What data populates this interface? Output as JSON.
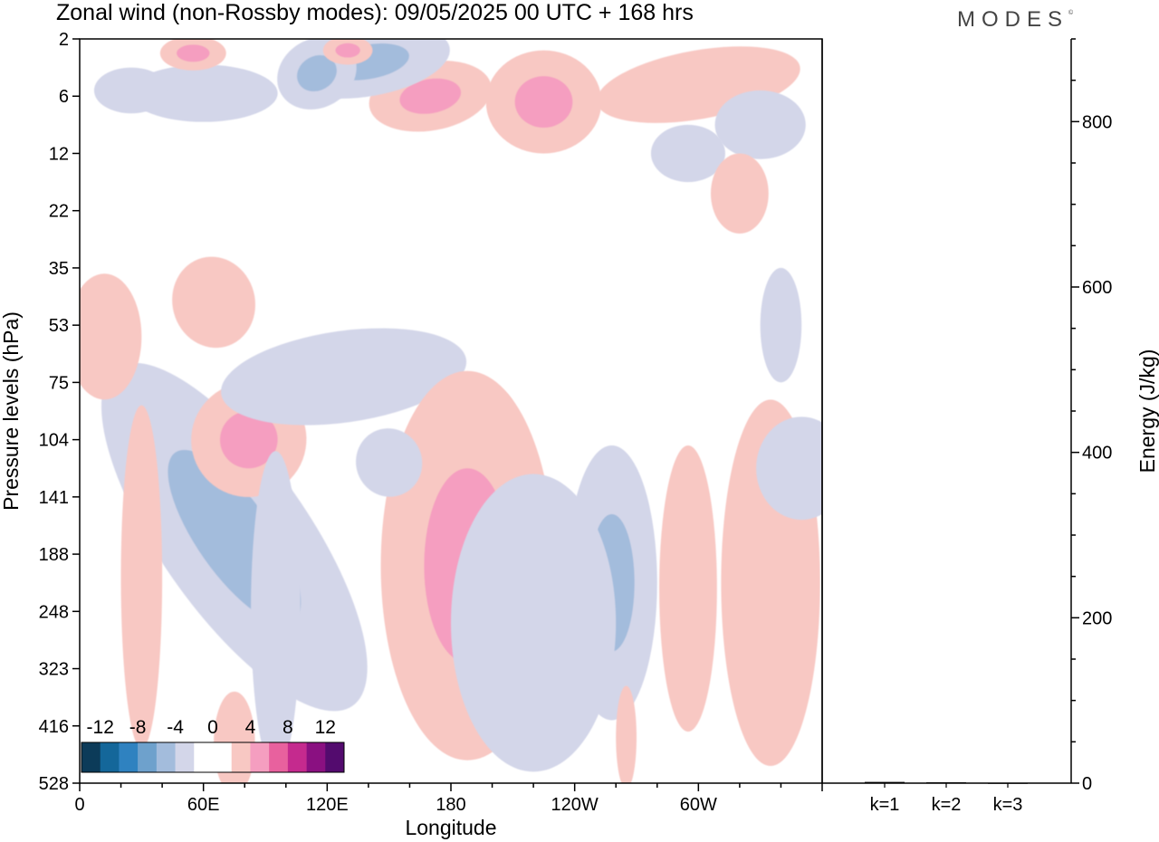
{
  "header": {
    "title": "Zonal wind (non-Rossby modes):  09/05/2025  00 UTC  + 168 hrs",
    "logo": "MODES",
    "logo_mark": "©"
  },
  "chart_data": [
    {
      "type": "heatmap",
      "title": "Zonal wind (non-Rossby modes):  09/05/2025  00 UTC  + 168 hrs",
      "xlabel": "Longitude",
      "ylabel": "Pressure levels (hPa)",
      "x_ticks": [
        {
          "label": "0",
          "deg": 0
        },
        {
          "label": "60E",
          "deg": 60
        },
        {
          "label": "120E",
          "deg": 120
        },
        {
          "label": "180",
          "deg": 180
        },
        {
          "label": "120W",
          "deg": 240
        },
        {
          "label": "60W",
          "deg": 300
        }
      ],
      "xlim": [
        0,
        360
      ],
      "y_levels": [
        "2",
        "6",
        "12",
        "22",
        "35",
        "53",
        "75",
        "104",
        "141",
        "188",
        "248",
        "323",
        "416",
        "528"
      ],
      "colorbar": {
        "labels": [
          "-12",
          "-8",
          "-4",
          "0",
          "4",
          "8",
          "12"
        ],
        "colors": [
          "#0c3b59",
          "#14679a",
          "#2f82c0",
          "#6ea1cc",
          "#a3bcdc",
          "#d3d6e9",
          "#ffffff",
          "#ffffff",
          "#f8c8c3",
          "#f59ec0",
          "#e8619e",
          "#c52a8e",
          "#8a1081",
          "#530b6e"
        ]
      },
      "features": [
        {
          "lon": 72,
          "lev": 8.5,
          "v": -16,
          "rx": 16,
          "ry": 1.6,
          "rot": -35
        },
        {
          "lon": 74,
          "lev": 8.5,
          "v": -10,
          "rx": 26,
          "ry": 2.5,
          "rot": -35
        },
        {
          "lon": 75,
          "lev": 8.7,
          "v": -5,
          "rx": 36,
          "ry": 3.6,
          "rot": -35
        },
        {
          "lon": 80,
          "lev": 6.9,
          "v": 7,
          "rx": 18,
          "ry": 0.8,
          "rot": -30
        },
        {
          "lon": 82,
          "lev": 7.0,
          "v": 4,
          "rx": 28,
          "ry": 1.0,
          "rot": -30
        },
        {
          "lon": 128,
          "lev": 5.9,
          "v": -3,
          "rx": 60,
          "ry": 0.8,
          "rot": -8
        },
        {
          "lon": 210,
          "lev": 8.7,
          "v": 10,
          "rx": 8,
          "ry": 1.6,
          "rot": 0
        },
        {
          "lon": 202,
          "lev": 8.3,
          "v": 7,
          "rx": 18,
          "ry": 2.2,
          "rot": 0
        },
        {
          "lon": 188,
          "lev": 9.2,
          "v": 4,
          "rx": 42,
          "ry": 3.4,
          "rot": 0
        },
        {
          "lon": 265,
          "lev": 9.6,
          "v": -8,
          "rx": 7,
          "ry": 1.2,
          "rot": 0
        },
        {
          "lon": 258,
          "lev": 9.5,
          "v": -4,
          "rx": 22,
          "ry": 2.4,
          "rot": 0
        },
        {
          "lon": 220,
          "lev": 10.2,
          "v": -3,
          "rx": 40,
          "ry": 2.6,
          "rot": 0
        },
        {
          "lon": 335,
          "lev": 8.7,
          "v": 6,
          "rx": 8,
          "ry": 1.2,
          "rot": 0
        },
        {
          "lon": 335,
          "lev": 9.5,
          "v": 3,
          "rx": 24,
          "ry": 3.2,
          "rot": 0
        },
        {
          "lon": 295,
          "lev": 9.6,
          "v": 3,
          "rx": 14,
          "ry": 2.5,
          "rot": 0
        },
        {
          "lon": 30,
          "lev": 9.4,
          "v": 3,
          "rx": 10,
          "ry": 3.0,
          "rot": 0
        },
        {
          "lon": 230,
          "lev": 1.0,
          "v": 9,
          "rx": 12,
          "ry": 0.5,
          "rot": 0
        },
        {
          "lon": 225,
          "lev": 1.1,
          "v": 5,
          "rx": 28,
          "ry": 0.9,
          "rot": 0
        },
        {
          "lon": 170,
          "lev": 1.0,
          "v": 4,
          "rx": 30,
          "ry": 0.6,
          "rot": -10
        },
        {
          "lon": 310,
          "lev": 0.65,
          "v": 7,
          "rx": 26,
          "ry": 0.35,
          "rot": -10
        },
        {
          "lon": 300,
          "lev": 0.8,
          "v": 3,
          "rx": 50,
          "ry": 0.6,
          "rot": -10
        },
        {
          "lon": 158,
          "lev": 0.2,
          "v": -10,
          "rx": 18,
          "ry": 0.35,
          "rot": 0
        },
        {
          "lon": 140,
          "lev": 0.4,
          "v": -5,
          "rx": 40,
          "ry": 0.6,
          "rot": -10
        },
        {
          "lon": 115,
          "lev": 0.6,
          "v": -4,
          "rx": 20,
          "ry": 0.6,
          "rot": -30
        },
        {
          "lon": 60,
          "lev": 0.95,
          "v": -3,
          "rx": 36,
          "ry": 0.5,
          "rot": 0
        },
        {
          "lon": 25,
          "lev": 0.9,
          "v": -3,
          "rx": 18,
          "ry": 0.4,
          "rot": 0
        },
        {
          "lon": 55,
          "lev": 0.25,
          "v": 4,
          "rx": 16,
          "ry": 0.3,
          "rot": 0
        },
        {
          "lon": 330,
          "lev": 1.5,
          "v": -3,
          "rx": 22,
          "ry": 0.6,
          "rot": 0
        },
        {
          "lon": 295,
          "lev": 2.0,
          "v": -3,
          "rx": 18,
          "ry": 0.5,
          "rot": 0
        },
        {
          "lon": 320,
          "lev": 2.7,
          "v": 3,
          "rx": 14,
          "ry": 0.7,
          "rot": 0
        },
        {
          "lon": 10,
          "lev": 5.1,
          "v": 5,
          "rx": 8,
          "ry": 0.6,
          "rot": 0
        },
        {
          "lon": 12,
          "lev": 5.2,
          "v": 3,
          "rx": 18,
          "ry": 1.1,
          "rot": 0
        },
        {
          "lon": 65,
          "lev": 4.6,
          "v": 3,
          "rx": 20,
          "ry": 0.8,
          "rot": -15
        },
        {
          "lon": 130,
          "lev": 0.2,
          "v": 4,
          "rx": 12,
          "ry": 0.25,
          "rot": 0
        },
        {
          "lon": 340,
          "lev": 5.0,
          "v": -3,
          "rx": 10,
          "ry": 1.0,
          "rot": 0
        },
        {
          "lon": 350,
          "lev": 7.5,
          "v": -3,
          "rx": 22,
          "ry": 0.9,
          "rot": 0
        },
        {
          "lon": 95,
          "lev": 10.0,
          "v": -3,
          "rx": 12,
          "ry": 2.8,
          "rot": 0
        },
        {
          "lon": 150,
          "lev": 7.4,
          "v": -3,
          "rx": 16,
          "ry": 0.6,
          "rot": -20
        },
        {
          "lon": 75,
          "lev": 12.3,
          "v": 3,
          "rx": 10,
          "ry": 0.9,
          "rot": 0
        },
        {
          "lon": 265,
          "lev": 12.2,
          "v": 3,
          "rx": 5,
          "ry": 0.9,
          "rot": 0
        }
      ]
    },
    {
      "type": "bar",
      "categories": [
        "k=1",
        "k=2",
        "k=3"
      ],
      "values": [
        1.5,
        1.0,
        0.5
      ],
      "ylabel": "Energy (J/kg)",
      "ylim": [
        0,
        900
      ],
      "y_ticks": [
        "0",
        "200",
        "400",
        "600",
        "800"
      ]
    }
  ]
}
